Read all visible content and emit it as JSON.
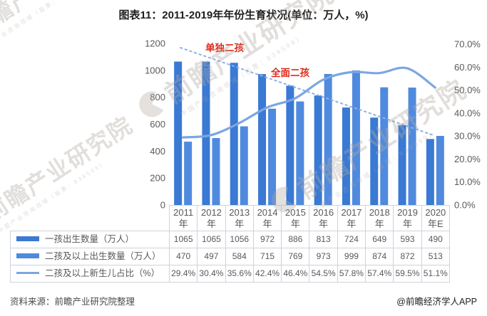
{
  "title": "图表11：2011-2019年年份生育状况(单位：万人，%)",
  "chart_data": {
    "type": "bar+line",
    "categories": [
      "2011年",
      "2012年",
      "2013年",
      "2014年",
      "2015年",
      "2016年",
      "2017年",
      "2018年",
      "2019年",
      "2020年E"
    ],
    "series": [
      {
        "name": "一孩出生数量（万人）",
        "type": "bar",
        "axis": "left",
        "color": "#3a79d4",
        "values": [
          1065,
          1065,
          1056,
          972,
          886,
          813,
          724,
          649,
          593,
          490
        ]
      },
      {
        "name": "二孩及以上出生数量（万人）",
        "type": "bar",
        "axis": "left",
        "color": "#4f8ade",
        "values": [
          470,
          497,
          584,
          715,
          769,
          973,
          999,
          874,
          872,
          513
        ]
      },
      {
        "name": "二孩及以上新生儿占比（%）",
        "type": "line",
        "axis": "right",
        "color": "#7ba6e2",
        "values": [
          29.4,
          30.4,
          35.6,
          42.4,
          46.4,
          54.5,
          57.8,
          57.4,
          59.5,
          51.1
        ]
      }
    ],
    "left_axis": {
      "ticks": [
        "1200",
        "1000",
        "800",
        "600",
        "400",
        "200",
        "0"
      ],
      "min": 0,
      "max": 1200
    },
    "right_axis": {
      "ticks": [
        "70.0%",
        "60.0%",
        "50.0%",
        "40.0%",
        "30.0%",
        "20.0%",
        "10.0%",
        "0.0%"
      ],
      "min": 0,
      "max": 70
    },
    "trendline": {
      "style": "dotted",
      "color": "#8db1e8"
    },
    "annotations": [
      {
        "text": "单独二孩",
        "color": "#e02a1c"
      },
      {
        "text": "全面二孩",
        "color": "#e02a1c"
      }
    ],
    "legend_position": "table-left",
    "grid": false
  },
  "table": {
    "rows": [
      {
        "label": "一孩出生数量（万人）",
        "swatch": "bar",
        "color": "#3a79d4",
        "values": [
          "1065",
          "1065",
          "1056",
          "972",
          "886",
          "813",
          "724",
          "649",
          "593",
          "490"
        ]
      },
      {
        "label": "二孩及以上出生数量（万人）",
        "swatch": "bar",
        "color": "#4f8ade",
        "values": [
          "470",
          "497",
          "584",
          "715",
          "769",
          "973",
          "999",
          "874",
          "872",
          "513"
        ]
      },
      {
        "label": "二孩及以上新生儿占比（%）",
        "swatch": "line",
        "color": "#7ba6e2",
        "values": [
          "29.4%",
          "30.4%",
          "35.6%",
          "42.4%",
          "46.4%",
          "54.5%",
          "57.8%",
          "57.4%",
          "59.5%",
          "51.1%"
        ]
      }
    ]
  },
  "footer": {
    "source": "资料来源：前瞻产业研究院整理",
    "credit": "@前瞻经济学人APP"
  },
  "watermark": {
    "text": "前瞻产业研究院",
    "subtext": "中国产业咨询领域（股票：839599）"
  }
}
